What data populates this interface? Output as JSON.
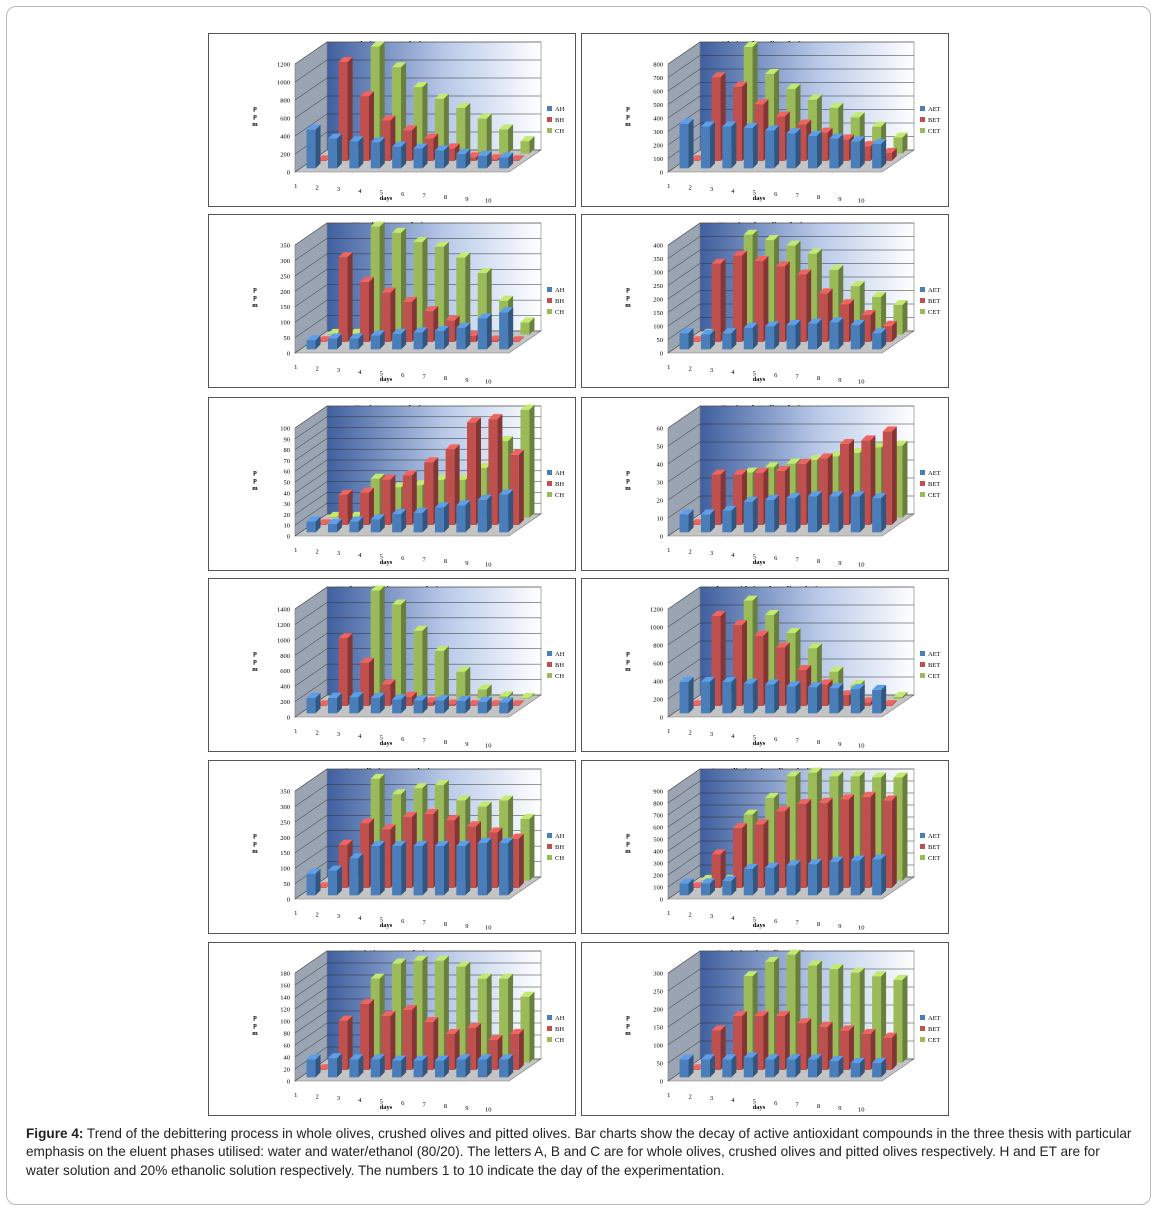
{
  "figure": {
    "caption_label": "Figure 4:",
    "caption_text": " Trend of the debittering process in whole olives, crushed olives and pitted olives. Bar charts show the decay of active antioxidant compounds in the three thesis with particular emphasis on the eluent phases utilised: water and water/ethanol (80/20). The letters A, B and C are for whole olives, crushed olives and pitted olives respectively. H and ET are for water solution and 20% ethanolic solution respectively. The numbers 1 to 10 indicate the day of the experimentation."
  },
  "colors": {
    "A": "#4a7ebb",
    "B": "#c0504d",
    "C": "#9bbb59"
  },
  "chart_data": [
    {
      "type": "bar",
      "title": "Olp in water solution",
      "ylabel": "ppm",
      "xlabel": "days",
      "ylim": [
        0,
        1200
      ],
      "yticks": [
        0,
        200,
        400,
        600,
        800,
        1000,
        1200
      ],
      "categories": [
        "1",
        "2",
        "3",
        "4",
        "5",
        "6",
        "7",
        "8",
        "9",
        "10"
      ],
      "series": [
        {
          "name": "AH",
          "values": [
            430,
            330,
            300,
            290,
            240,
            220,
            200,
            160,
            140,
            120
          ]
        },
        {
          "name": "BH",
          "values": [
            0,
            1100,
            720,
            450,
            340,
            250,
            140,
            40,
            20,
            0
          ]
        },
        {
          "name": "CH",
          "values": [
            0,
            0,
            1190,
            960,
            740,
            610,
            510,
            390,
            270,
            140
          ]
        }
      ]
    },
    {
      "type": "bar",
      "title": "Olp in ethanolic solution",
      "ylabel": "ppm",
      "xlabel": "days",
      "ylim": [
        0,
        800
      ],
      "yticks": [
        0,
        100,
        200,
        300,
        400,
        500,
        600,
        700,
        800
      ],
      "categories": [
        "1",
        "2",
        "3",
        "4",
        "5",
        "6",
        "7",
        "8",
        "9",
        "10"
      ],
      "series": [
        {
          "name": "AET",
          "values": [
            330,
            310,
            310,
            300,
            280,
            260,
            240,
            220,
            200,
            180
          ]
        },
        {
          "name": "BET",
          "values": [
            0,
            620,
            550,
            420,
            330,
            270,
            210,
            160,
            110,
            60
          ]
        },
        {
          "name": "CET",
          "values": [
            0,
            0,
            790,
            590,
            480,
            400,
            340,
            270,
            200,
            120
          ]
        }
      ]
    },
    {
      "type": "bar",
      "title": "Htyr in water solution",
      "ylabel": "ppm",
      "xlabel": "days",
      "ylim": [
        0,
        350
      ],
      "yticks": [
        0,
        50,
        100,
        150,
        200,
        250,
        300,
        350
      ],
      "categories": [
        "1",
        "2",
        "3",
        "4",
        "5",
        "6",
        "7",
        "8",
        "9",
        "10"
      ],
      "series": [
        {
          "name": "AH",
          "values": [
            30,
            35,
            35,
            45,
            50,
            55,
            60,
            70,
            100,
            120
          ]
        },
        {
          "name": "BH",
          "values": [
            0,
            275,
            195,
            160,
            130,
            100,
            70,
            20,
            5,
            0
          ]
        },
        {
          "name": "CH",
          "values": [
            0,
            0,
            350,
            330,
            300,
            285,
            250,
            200,
            110,
            40
          ]
        }
      ]
    },
    {
      "type": "bar",
      "title": "Htyr in ethanolic solution",
      "ylabel": "ppm",
      "xlabel": "days",
      "ylim": [
        0,
        400
      ],
      "yticks": [
        0,
        50,
        100,
        150,
        200,
        250,
        300,
        350,
        400
      ],
      "categories": [
        "1",
        "2",
        "3",
        "4",
        "5",
        "6",
        "7",
        "8",
        "9",
        "10"
      ],
      "series": [
        {
          "name": "AET",
          "values": [
            60,
            55,
            60,
            80,
            85,
            90,
            95,
            100,
            90,
            60
          ]
        },
        {
          "name": "BET",
          "values": [
            0,
            290,
            320,
            300,
            280,
            250,
            180,
            140,
            100,
            60
          ]
        },
        {
          "name": "CET",
          "values": [
            0,
            0,
            370,
            350,
            330,
            300,
            240,
            180,
            140,
            110
          ]
        }
      ]
    },
    {
      "type": "bar",
      "title": "Tyr in water solution",
      "ylabel": "ppm",
      "xlabel": "days",
      "ylim": [
        0,
        100
      ],
      "yticks": [
        0,
        10,
        20,
        30,
        40,
        50,
        60,
        70,
        80,
        90,
        100
      ],
      "categories": [
        "1",
        "2",
        "3",
        "4",
        "5",
        "6",
        "7",
        "8",
        "9",
        "10"
      ],
      "series": [
        {
          "name": "AH",
          "values": [
            10,
            8,
            10,
            12,
            17,
            18,
            23,
            25,
            30,
            35
          ]
        },
        {
          "name": "BH",
          "values": [
            0,
            28,
            30,
            42,
            46,
            58,
            70,
            95,
            98,
            65
          ]
        },
        {
          "name": "CH",
          "values": [
            0,
            0,
            36,
            28,
            30,
            35,
            35,
            46,
            71,
            100
          ]
        }
      ]
    },
    {
      "type": "bar",
      "title": "Tyr in ethanolic solution",
      "ylabel": "ppm",
      "xlabel": "days",
      "ylim": [
        0,
        60
      ],
      "yticks": [
        0,
        10,
        20,
        30,
        40,
        50,
        60
      ],
      "categories": [
        "1",
        "2",
        "3",
        "4",
        "5",
        "6",
        "7",
        "8",
        "9",
        "10"
      ],
      "series": [
        {
          "name": "AET",
          "values": [
            10,
            10,
            12,
            17,
            18,
            19,
            20,
            20,
            20,
            19
          ]
        },
        {
          "name": "BET",
          "values": [
            0,
            28,
            28,
            29,
            30,
            34,
            37,
            45,
            47,
            52
          ]
        },
        {
          "name": "CET",
          "values": [
            0,
            0,
            25,
            28,
            30,
            32,
            34,
            36,
            39,
            40
          ]
        }
      ]
    },
    {
      "type": "bar",
      "title": "Verbascoside in water solution",
      "ylabel": "ppm",
      "xlabel": "days",
      "ylim": [
        0,
        1400
      ],
      "yticks": [
        0,
        200,
        400,
        600,
        800,
        1000,
        1200,
        1400
      ],
      "categories": [
        "1",
        "2",
        "3",
        "4",
        "5",
        "6",
        "7",
        "8",
        "9",
        "10"
      ],
      "series": [
        {
          "name": "AH",
          "values": [
            200,
            200,
            210,
            200,
            180,
            170,
            170,
            160,
            150,
            140
          ]
        },
        {
          "name": "BH",
          "values": [
            0,
            880,
            560,
            280,
            120,
            50,
            20,
            10,
            0,
            0
          ]
        },
        {
          "name": "CH",
          "values": [
            0,
            0,
            1400,
            1220,
            880,
            620,
            350,
            120,
            30,
            10
          ]
        }
      ]
    },
    {
      "type": "bar",
      "title": "Verbascoside in ethanolic solution",
      "ylabel": "ppm",
      "xlabel": "days",
      "ylim": [
        0,
        1200
      ],
      "yticks": [
        0,
        200,
        400,
        600,
        800,
        1000,
        1200
      ],
      "categories": [
        "1",
        "2",
        "3",
        "4",
        "5",
        "6",
        "7",
        "8",
        "9",
        "10"
      ],
      "series": [
        {
          "name": "AET",
          "values": [
            350,
            350,
            350,
            330,
            320,
            300,
            290,
            280,
            270,
            260
          ]
        },
        {
          "name": "BET",
          "values": [
            0,
            1000,
            900,
            780,
            650,
            400,
            240,
            120,
            40,
            10
          ]
        },
        {
          "name": "CET",
          "values": [
            0,
            0,
            1090,
            930,
            730,
            560,
            300,
            150,
            60,
            20
          ]
        }
      ]
    },
    {
      "type": "bar",
      "title": "Luteolin in water solution",
      "ylabel": "ppm",
      "xlabel": "days",
      "ylim": [
        0,
        350
      ],
      "yticks": [
        0,
        50,
        100,
        150,
        200,
        250,
        300,
        350
      ],
      "categories": [
        "1",
        "2",
        "3",
        "4",
        "5",
        "6",
        "7",
        "8",
        "9",
        "10"
      ],
      "series": [
        {
          "name": "AH",
          "values": [
            70,
            80,
            120,
            160,
            160,
            160,
            160,
            160,
            170,
            170
          ]
        },
        {
          "name": "BH",
          "values": [
            0,
            140,
            210,
            190,
            230,
            240,
            220,
            200,
            180,
            160
          ]
        },
        {
          "name": "CH",
          "values": [
            0,
            0,
            330,
            280,
            300,
            310,
            260,
            240,
            260,
            200
          ]
        }
      ]
    },
    {
      "type": "bar",
      "title": "Luteolin in ethanolic solution",
      "ylabel": "ppm",
      "xlabel": "days",
      "ylim": [
        0,
        900
      ],
      "yticks": [
        0,
        100,
        200,
        300,
        400,
        500,
        600,
        700,
        800,
        900
      ],
      "categories": [
        "1",
        "2",
        "3",
        "4",
        "5",
        "6",
        "7",
        "8",
        "9",
        "10"
      ],
      "series": [
        {
          "name": "AET",
          "values": [
            100,
            100,
            120,
            220,
            230,
            250,
            260,
            280,
            290,
            300
          ]
        },
        {
          "name": "BET",
          "values": [
            0,
            280,
            500,
            530,
            640,
            700,
            710,
            740,
            760,
            730
          ]
        },
        {
          "name": "CET",
          "values": [
            0,
            0,
            550,
            690,
            870,
            900,
            870,
            870,
            860,
            860
          ]
        }
      ]
    },
    {
      "type": "bar",
      "title": "Rutin in water solution",
      "ylabel": "ppm",
      "xlabel": "days",
      "ylim": [
        0,
        180
      ],
      "yticks": [
        0,
        20,
        40,
        60,
        80,
        100,
        120,
        140,
        160,
        180
      ],
      "categories": [
        "1",
        "2",
        "3",
        "4",
        "5",
        "6",
        "7",
        "8",
        "9",
        "10"
      ],
      "series": [
        {
          "name": "AH",
          "values": [
            30,
            32,
            30,
            30,
            28,
            28,
            28,
            30,
            30,
            30
          ]
        },
        {
          "name": "BH",
          "values": [
            0,
            82,
            110,
            90,
            100,
            80,
            60,
            70,
            50,
            60
          ]
        },
        {
          "name": "CH",
          "values": [
            0,
            0,
            140,
            165,
            170,
            170,
            160,
            140,
            140,
            110
          ]
        }
      ]
    },
    {
      "type": "bar",
      "title": "Rutin in ethanolic solution",
      "ylabel": "ppm",
      "xlabel": "days",
      "ylim": [
        0,
        300
      ],
      "yticks": [
        0,
        50,
        100,
        150,
        200,
        250,
        300
      ],
      "categories": [
        "1",
        "2",
        "3",
        "4",
        "5",
        "6",
        "7",
        "8",
        "9",
        "10"
      ],
      "series": [
        {
          "name": "AET",
          "values": [
            50,
            50,
            50,
            55,
            50,
            50,
            50,
            45,
            40,
            40
          ]
        },
        {
          "name": "BET",
          "values": [
            0,
            110,
            150,
            150,
            150,
            130,
            120,
            110,
            100,
            90
          ]
        },
        {
          "name": "CET",
          "values": [
            0,
            0,
            240,
            280,
            300,
            270,
            260,
            250,
            240,
            230
          ]
        }
      ]
    }
  ]
}
